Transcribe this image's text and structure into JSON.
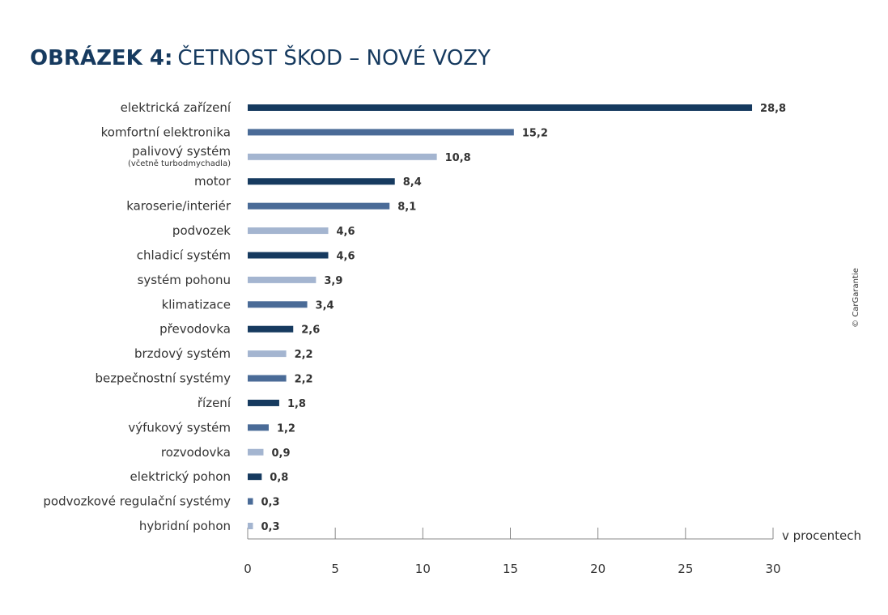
{
  "chart_data": {
    "type": "bar",
    "orientation": "horizontal",
    "figure_label": "OBRÁZEK 4:",
    "title": "ČETNOST ŠKOD – NOVÉ VOZY",
    "categories": [
      "elektrická zařízení",
      "komfortní elektronika",
      "palivový systém",
      "motor",
      "karoserie/interiér",
      "podvozek",
      "chladicí systém",
      "systém pohonu",
      "klimatizace",
      "převodovka",
      "brzdový systém",
      "bezpečnostní systémy",
      "řízení",
      "výfukový systém",
      "rozvodovka",
      "elektrický pohon",
      "podvozkové regulační systémy",
      "hybridní pohon"
    ],
    "category_sublabels": [
      null,
      null,
      "(včetně turbodmychadla)",
      null,
      null,
      null,
      null,
      null,
      null,
      null,
      null,
      null,
      null,
      null,
      null,
      null,
      null,
      null
    ],
    "values": [
      28.8,
      15.2,
      10.8,
      8.4,
      8.1,
      4.6,
      4.6,
      3.9,
      3.4,
      2.6,
      2.2,
      2.2,
      1.8,
      1.2,
      0.9,
      0.8,
      0.3,
      0.3
    ],
    "value_labels": [
      "28,8",
      "15,2",
      "10,8",
      "8,4",
      "8,1",
      "4,6",
      "4,6",
      "3,9",
      "3,4",
      "2,6",
      "2,2",
      "2,2",
      "1,8",
      "1,2",
      "0,9",
      "0,8",
      "0,3",
      "0,3"
    ],
    "colors": [
      "#163a5f",
      "#4a6b97",
      "#a4b5d0",
      "#163a5f",
      "#4a6b97",
      "#a4b5d0",
      "#163a5f",
      "#a4b5d0",
      "#4a6b97",
      "#163a5f",
      "#a4b5d0",
      "#4a6b97",
      "#163a5f",
      "#4a6b97",
      "#a4b5d0",
      "#163a5f",
      "#4a6b97",
      "#a4b5d0"
    ],
    "xlim": [
      0,
      30
    ],
    "xticks": [
      0,
      5,
      10,
      15,
      20,
      25,
      30
    ],
    "x_axis_label": "v procentech",
    "copyright": "© CarGarantie"
  }
}
